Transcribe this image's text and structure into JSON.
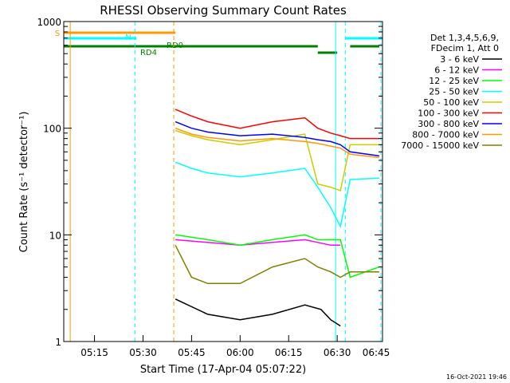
{
  "chart_data": {
    "type": "line",
    "title": "RHESSI Observing Summary Count Rates",
    "xlabel": "Start Time (17-Apr-04 05:07:22)",
    "ylabel": "Count Rate (s⁻¹ detector⁻¹)",
    "y_scale": "log",
    "ylim": [
      1,
      1000
    ],
    "xlim_minutes": [
      5.5,
      104
    ],
    "x_ticks": [
      {
        "minute": 15,
        "label": "05:15"
      },
      {
        "minute": 30,
        "label": "05:30"
      },
      {
        "minute": 45,
        "label": "05:45"
      },
      {
        "minute": 60,
        "label": "06:00"
      },
      {
        "minute": 75,
        "label": "06:15"
      },
      {
        "minute": 90,
        "label": "06:30"
      },
      {
        "minute": 105,
        "label": "06:45"
      }
    ],
    "y_ticks": [
      {
        "value": 1,
        "label": "1"
      },
      {
        "value": 10,
        "label": "10"
      },
      {
        "value": 100,
        "label": "100"
      },
      {
        "value": 1000,
        "label": "1000"
      }
    ],
    "legend_header": [
      "Det 1,3,4,5,6,9,",
      "FDecim 1, Att 0"
    ],
    "legend_position": "right",
    "footer_date": "16-Oct-2021 19:46",
    "series": [
      {
        "name": "3 - 6 keV",
        "color": "#000000",
        "x": [
          40,
          50,
          60,
          70,
          80,
          85,
          88,
          91
        ],
        "y": [
          2.5,
          1.8,
          1.6,
          1.8,
          2.2,
          2.0,
          1.6,
          1.4
        ]
      },
      {
        "name": "6 - 12 keV",
        "color": "#ff00ff",
        "x": [
          40,
          50,
          60,
          70,
          80,
          84,
          88,
          91
        ],
        "y": [
          9,
          8.5,
          8,
          8.5,
          9,
          8.5,
          8,
          8
        ]
      },
      {
        "name": "12 - 25 keV",
        "color": "#00ff00",
        "x": [
          40,
          50,
          60,
          70,
          80,
          84,
          88,
          91,
          94,
          103
        ],
        "y": [
          10,
          9,
          8,
          9,
          10,
          9,
          9,
          9,
          4,
          5
        ]
      },
      {
        "name": "25 - 50 keV",
        "color": "#00ffff",
        "x": [
          40,
          45,
          50,
          60,
          70,
          80,
          84,
          88,
          91,
          94,
          103
        ],
        "y": [
          48,
          42,
          38,
          35,
          38,
          42,
          28,
          18,
          12,
          33,
          34
        ]
      },
      {
        "name": "50 - 100 keV",
        "color": "#cccc00",
        "x": [
          40,
          45,
          50,
          60,
          70,
          80,
          84,
          88,
          91,
          94,
          103
        ],
        "y": [
          95,
          85,
          78,
          70,
          78,
          88,
          30,
          28,
          26,
          70,
          70
        ]
      },
      {
        "name": "100 - 300 keV",
        "color": "#ff0000",
        "x": [
          40,
          45,
          50,
          60,
          70,
          80,
          84,
          88,
          91,
          94,
          103
        ],
        "y": [
          150,
          130,
          115,
          100,
          115,
          125,
          100,
          90,
          85,
          80,
          80
        ]
      },
      {
        "name": "300 - 800 keV",
        "color": "#0000ff",
        "x": [
          40,
          45,
          50,
          60,
          70,
          80,
          84,
          88,
          91,
          94,
          103
        ],
        "y": [
          115,
          100,
          92,
          85,
          88,
          82,
          78,
          75,
          70,
          60,
          55
        ]
      },
      {
        "name": "800 - 7000 keV",
        "color": "#ff9900",
        "x": [
          40,
          45,
          50,
          60,
          70,
          80,
          84,
          88,
          91,
          94,
          103
        ],
        "y": [
          100,
          88,
          82,
          76,
          80,
          75,
          72,
          68,
          65,
          57,
          53
        ]
      },
      {
        "name": "7000 - 15000 keV",
        "color": "#808000",
        "x": [
          40,
          45,
          50,
          60,
          70,
          80,
          84,
          88,
          91,
          94,
          103
        ],
        "y": [
          8,
          4,
          3.5,
          3.5,
          5,
          6,
          5,
          4.5,
          4,
          4.5,
          4.5
        ]
      }
    ],
    "flags": [
      {
        "label": "S",
        "color": "#ff9900",
        "segments": [
          [
            5.5,
            40
          ]
        ]
      },
      {
        "label": "N",
        "color": "#00ffff",
        "segments": [
          [
            5.5,
            28
          ],
          [
            92.5,
            104
          ]
        ]
      },
      {
        "label": "RD0",
        "color": "#008000",
        "segments": [
          [
            5.5,
            84
          ],
          [
            94,
            103
          ]
        ]
      },
      {
        "label": "RD4",
        "color": "#008000",
        "segments": [
          [
            84,
            90
          ]
        ]
      }
    ],
    "vertical_markers": [
      {
        "minute": 7.5,
        "color": "#ff9900",
        "style": "solid"
      },
      {
        "minute": 27.5,
        "color": "#00ffff",
        "style": "dashed"
      },
      {
        "minute": 39.5,
        "color": "#ff9900",
        "style": "dashed"
      },
      {
        "minute": 89.5,
        "color": "#00ffff",
        "style": "solid"
      },
      {
        "minute": 92.5,
        "color": "#00ffff",
        "style": "dashed"
      },
      {
        "minute": 103.5,
        "color": "#00ffff",
        "style": "dashed"
      }
    ]
  }
}
